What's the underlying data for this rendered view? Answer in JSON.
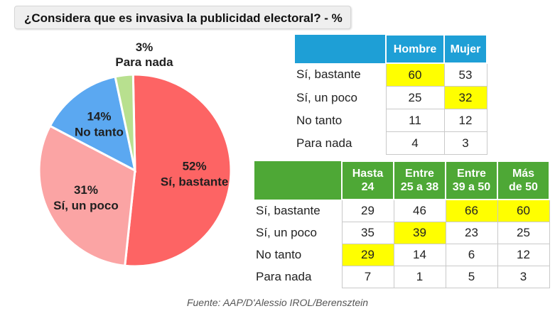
{
  "title": "¿Considera que es invasiva la publicidad electoral? - %",
  "chart_data": [
    {
      "type": "pie",
      "slices": [
        {
          "label": "Sí, bastante",
          "value": 52,
          "value_label": "52%",
          "color": "#fd6464"
        },
        {
          "label": "Sí, un poco",
          "value": 31,
          "value_label": "31%",
          "color": "#fba4a4"
        },
        {
          "label": "No tanto",
          "value": 14,
          "value_label": "14%",
          "color": "#5ba8f1"
        },
        {
          "label": "Para nada",
          "value": 3,
          "value_label": "3%",
          "color": "#b8e08f"
        }
      ]
    },
    {
      "type": "table",
      "headers": [
        "Hombre",
        "Mujer"
      ],
      "header_color": "#1e9fd6",
      "rows": [
        {
          "label": "Sí, bastante",
          "values": [
            "60",
            "53"
          ],
          "highlight": [
            true,
            false
          ]
        },
        {
          "label": "Sí, un poco",
          "values": [
            "25",
            "32"
          ],
          "highlight": [
            false,
            true
          ]
        },
        {
          "label": "No tanto",
          "values": [
            "11",
            "12"
          ],
          "highlight": [
            false,
            false
          ]
        },
        {
          "label": "Para nada",
          "values": [
            "4",
            "3"
          ],
          "highlight": [
            false,
            false
          ]
        }
      ]
    },
    {
      "type": "table",
      "headers": [
        [
          "Hasta",
          "24"
        ],
        [
          "Entre",
          "25 a 38"
        ],
        [
          "Entre",
          "39 a 50"
        ],
        [
          "Más",
          "de 50"
        ]
      ],
      "header_color": "#4ea836",
      "rows": [
        {
          "label": "Sí, bastante",
          "values": [
            "29",
            "46",
            "66",
            "60"
          ],
          "highlight": [
            false,
            false,
            true,
            true
          ]
        },
        {
          "label": "Sí, un poco",
          "values": [
            "35",
            "39",
            "23",
            "25"
          ],
          "highlight": [
            false,
            true,
            false,
            false
          ]
        },
        {
          "label": "No tanto",
          "values": [
            "29",
            "14",
            "6",
            "12"
          ],
          "highlight": [
            true,
            false,
            false,
            false
          ]
        },
        {
          "label": "Para nada",
          "values": [
            "7",
            "1",
            "5",
            "3"
          ],
          "highlight": [
            false,
            false,
            false,
            false
          ]
        }
      ]
    }
  ],
  "highlight_color": "#ffff00",
  "source": "Fuente: AAP/D'Alessio IROL/Berensztein"
}
